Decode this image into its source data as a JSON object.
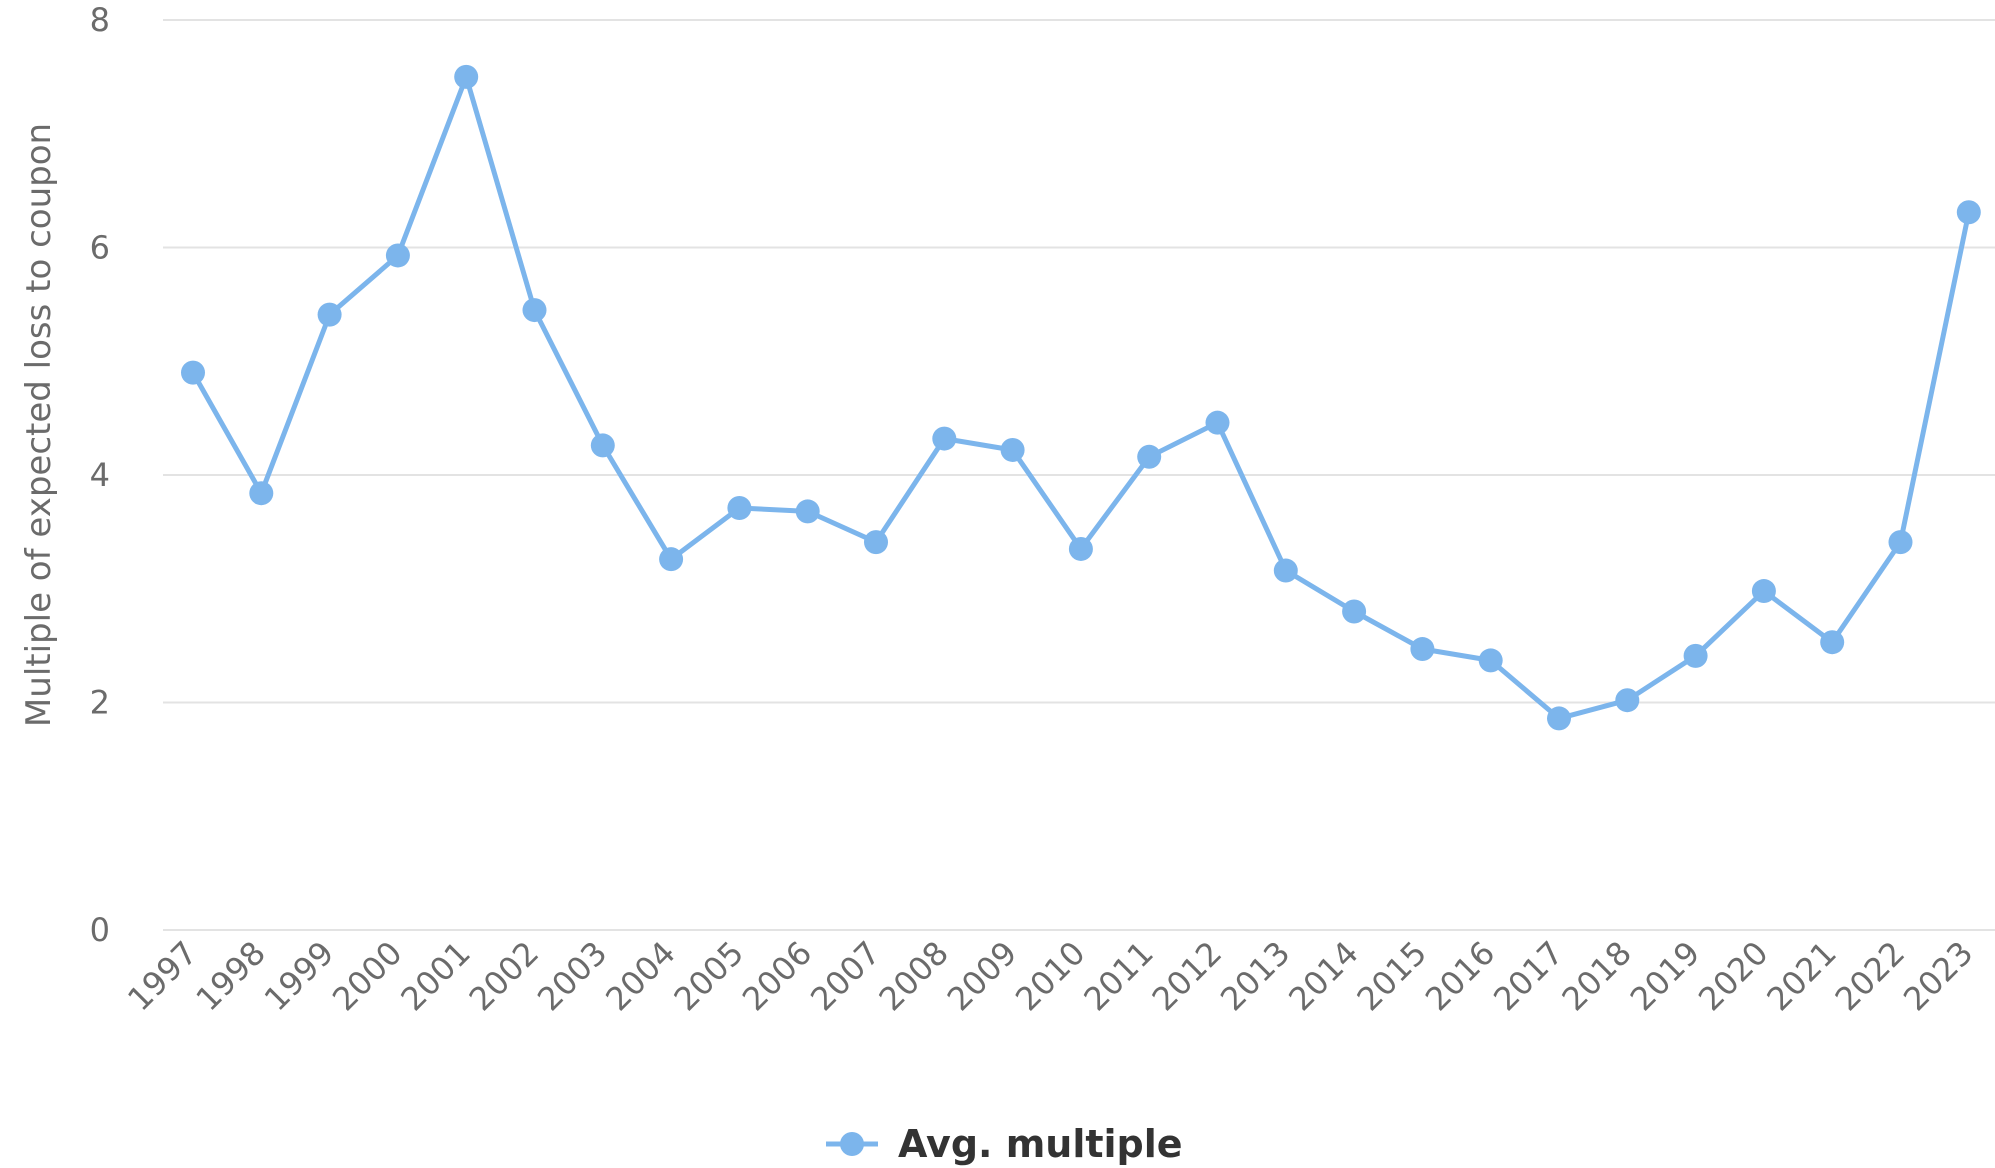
{
  "chart_data": {
    "type": "line",
    "ylabel": "Multiple of expected loss to coupon",
    "xlabel": "",
    "ylim": [
      0,
      8
    ],
    "yticks": [
      0,
      2,
      4,
      6,
      8
    ],
    "grid": true,
    "legend_position": "bottom-center",
    "x": [
      "1997",
      "1998",
      "1999",
      "2000",
      "2001",
      "2002",
      "2003",
      "2004",
      "2005",
      "2006",
      "2007",
      "2008",
      "2009",
      "2010",
      "2011",
      "2012",
      "2013",
      "2014",
      "2015",
      "2016",
      "2017",
      "2018",
      "2019",
      "2020",
      "2021",
      "2022",
      "2023"
    ],
    "series": [
      {
        "name": "Avg. multiple",
        "color": "#7cb5ec",
        "values": [
          4.9,
          3.84,
          5.41,
          5.93,
          7.5,
          5.45,
          4.26,
          3.26,
          3.71,
          3.68,
          3.41,
          4.32,
          4.22,
          3.35,
          4.16,
          4.46,
          3.16,
          2.8,
          2.47,
          2.37,
          1.86,
          2.02,
          2.41,
          2.98,
          2.53,
          3.41,
          6.31
        ]
      }
    ]
  }
}
